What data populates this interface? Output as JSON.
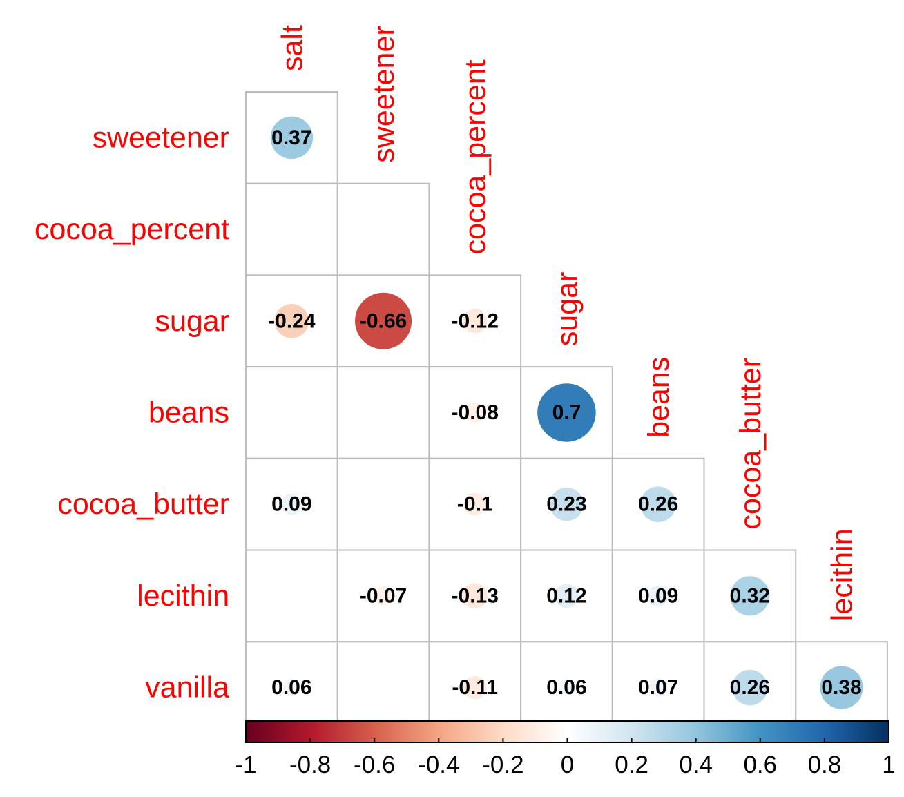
{
  "chart_data": {
    "type": "heatmap",
    "subtype": "correlation-matrix-lower-triangle",
    "method": "circle",
    "variables": [
      "salt",
      "sweetener",
      "cocoa_percent",
      "sugar",
      "beans",
      "cocoa_butter",
      "lecithin",
      "vanilla"
    ],
    "row_labels": [
      "sweetener",
      "cocoa_percent",
      "sugar",
      "beans",
      "cocoa_butter",
      "lecithin",
      "vanilla"
    ],
    "col_labels": [
      "salt",
      "sweetener",
      "cocoa_percent",
      "sugar",
      "beans",
      "cocoa_butter",
      "lecithin"
    ],
    "cells": [
      {
        "row": "sweetener",
        "col": "salt",
        "value": 0.37,
        "label": "0.37"
      },
      {
        "row": "cocoa_percent",
        "col": "salt",
        "value": null,
        "label": ""
      },
      {
        "row": "cocoa_percent",
        "col": "sweetener",
        "value": null,
        "label": ""
      },
      {
        "row": "sugar",
        "col": "salt",
        "value": -0.24,
        "label": "-0.24"
      },
      {
        "row": "sugar",
        "col": "sweetener",
        "value": -0.66,
        "label": "-0.66"
      },
      {
        "row": "sugar",
        "col": "cocoa_percent",
        "value": -0.12,
        "label": "-0.12"
      },
      {
        "row": "beans",
        "col": "salt",
        "value": null,
        "label": ""
      },
      {
        "row": "beans",
        "col": "sweetener",
        "value": null,
        "label": ""
      },
      {
        "row": "beans",
        "col": "cocoa_percent",
        "value": -0.08,
        "label": "-0.08"
      },
      {
        "row": "beans",
        "col": "sugar",
        "value": 0.7,
        "label": "0.7"
      },
      {
        "row": "cocoa_butter",
        "col": "salt",
        "value": 0.09,
        "label": "0.09"
      },
      {
        "row": "cocoa_butter",
        "col": "sweetener",
        "value": null,
        "label": ""
      },
      {
        "row": "cocoa_butter",
        "col": "cocoa_percent",
        "value": -0.1,
        "label": "-0.1"
      },
      {
        "row": "cocoa_butter",
        "col": "sugar",
        "value": 0.23,
        "label": "0.23"
      },
      {
        "row": "cocoa_butter",
        "col": "beans",
        "value": 0.26,
        "label": "0.26"
      },
      {
        "row": "lecithin",
        "col": "salt",
        "value": null,
        "label": ""
      },
      {
        "row": "lecithin",
        "col": "sweetener",
        "value": -0.07,
        "label": "-0.07"
      },
      {
        "row": "lecithin",
        "col": "cocoa_percent",
        "value": -0.13,
        "label": "-0.13"
      },
      {
        "row": "lecithin",
        "col": "sugar",
        "value": 0.12,
        "label": "0.12"
      },
      {
        "row": "lecithin",
        "col": "beans",
        "value": 0.09,
        "label": "0.09"
      },
      {
        "row": "lecithin",
        "col": "cocoa_butter",
        "value": 0.32,
        "label": "0.32"
      },
      {
        "row": "vanilla",
        "col": "salt",
        "value": 0.06,
        "label": "0.06"
      },
      {
        "row": "vanilla",
        "col": "sweetener",
        "value": null,
        "label": ""
      },
      {
        "row": "vanilla",
        "col": "cocoa_percent",
        "value": -0.11,
        "label": "-0.11"
      },
      {
        "row": "vanilla",
        "col": "sugar",
        "value": 0.06,
        "label": "0.06"
      },
      {
        "row": "vanilla",
        "col": "beans",
        "value": 0.07,
        "label": "0.07"
      },
      {
        "row": "vanilla",
        "col": "cocoa_butter",
        "value": 0.26,
        "label": "0.26"
      },
      {
        "row": "vanilla",
        "col": "lecithin",
        "value": 0.38,
        "label": "0.38"
      }
    ],
    "colorbar": {
      "range": [
        -1,
        1
      ],
      "ticks": [
        "-1",
        "-0.8",
        "-0.6",
        "-0.4",
        "-0.2",
        "0",
        "0.2",
        "0.4",
        "0.6",
        "0.8",
        "1"
      ],
      "palette": [
        "#67001f",
        "#b2182b",
        "#d6604d",
        "#f4a582",
        "#fddbc7",
        "#ffffff",
        "#d1e5f0",
        "#92c5de",
        "#4393c3",
        "#2166ac",
        "#053061"
      ]
    },
    "label_color": "#ff0000",
    "value_color": "#000000",
    "grid_color": "#bdbdbd",
    "title": "",
    "xlabel": "",
    "ylabel": ""
  }
}
